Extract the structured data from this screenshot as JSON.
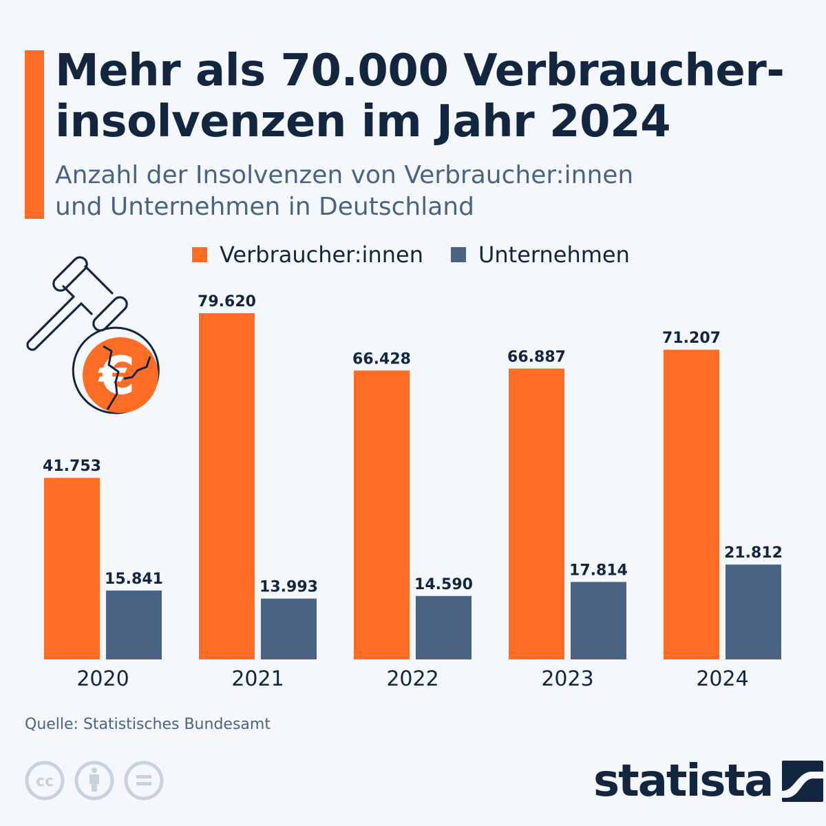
{
  "header": {
    "title": "Mehr als 70.000 Verbraucher-insolvenzen im Jahr 2024",
    "title_line1": "Mehr als 70.000 Verbraucher-",
    "title_line2": "insolvenzen im Jahr 2024",
    "subtitle_line1": "Anzahl der Insolvenzen von Verbraucher:innen",
    "subtitle_line2": "und Unternehmen in Deutschland"
  },
  "colors": {
    "accent": "#ff6c24",
    "series_verbraucher": "#ff6c24",
    "series_unternehmen": "#4a6382",
    "text_dark": "#13263f",
    "background": "#f4f7fb"
  },
  "chart_data": {
    "type": "bar",
    "title": "Mehr als 70.000 Verbraucherinsolvenzen im Jahr 2024",
    "subtitle": "Anzahl der Insolvenzen von Verbraucher:innen und Unternehmen in Deutschland",
    "xlabel": "",
    "ylabel": "",
    "categories": [
      "2020",
      "2021",
      "2022",
      "2023",
      "2024"
    ],
    "series": [
      {
        "name": "Verbraucher:innen",
        "color": "#ff6c24",
        "values": [
          41753,
          79620,
          66428,
          66887,
          71207
        ],
        "labels": [
          "41.753",
          "79.620",
          "66.428",
          "66.887",
          "71.207"
        ]
      },
      {
        "name": "Unternehmen",
        "color": "#4a6382",
        "values": [
          15841,
          13993,
          14590,
          17814,
          21812
        ],
        "labels": [
          "15.841",
          "13.993",
          "14.590",
          "17.814",
          "21.812"
        ]
      }
    ],
    "ylim": [
      0,
      80000
    ],
    "grid": false,
    "legend_position": "top"
  },
  "legend": {
    "items": [
      {
        "label": "Verbraucher:innen",
        "color": "#ff6c24"
      },
      {
        "label": "Unternehmen",
        "color": "#4a6382"
      }
    ]
  },
  "illustration": {
    "icons": [
      "gavel-icon",
      "broken-euro-coin-icon"
    ]
  },
  "footer": {
    "source": "Quelle: Statistisches Bundesamt",
    "license_icons": [
      "cc-icon",
      "attribution-icon",
      "no-derivatives-icon"
    ],
    "brand": "statista"
  }
}
